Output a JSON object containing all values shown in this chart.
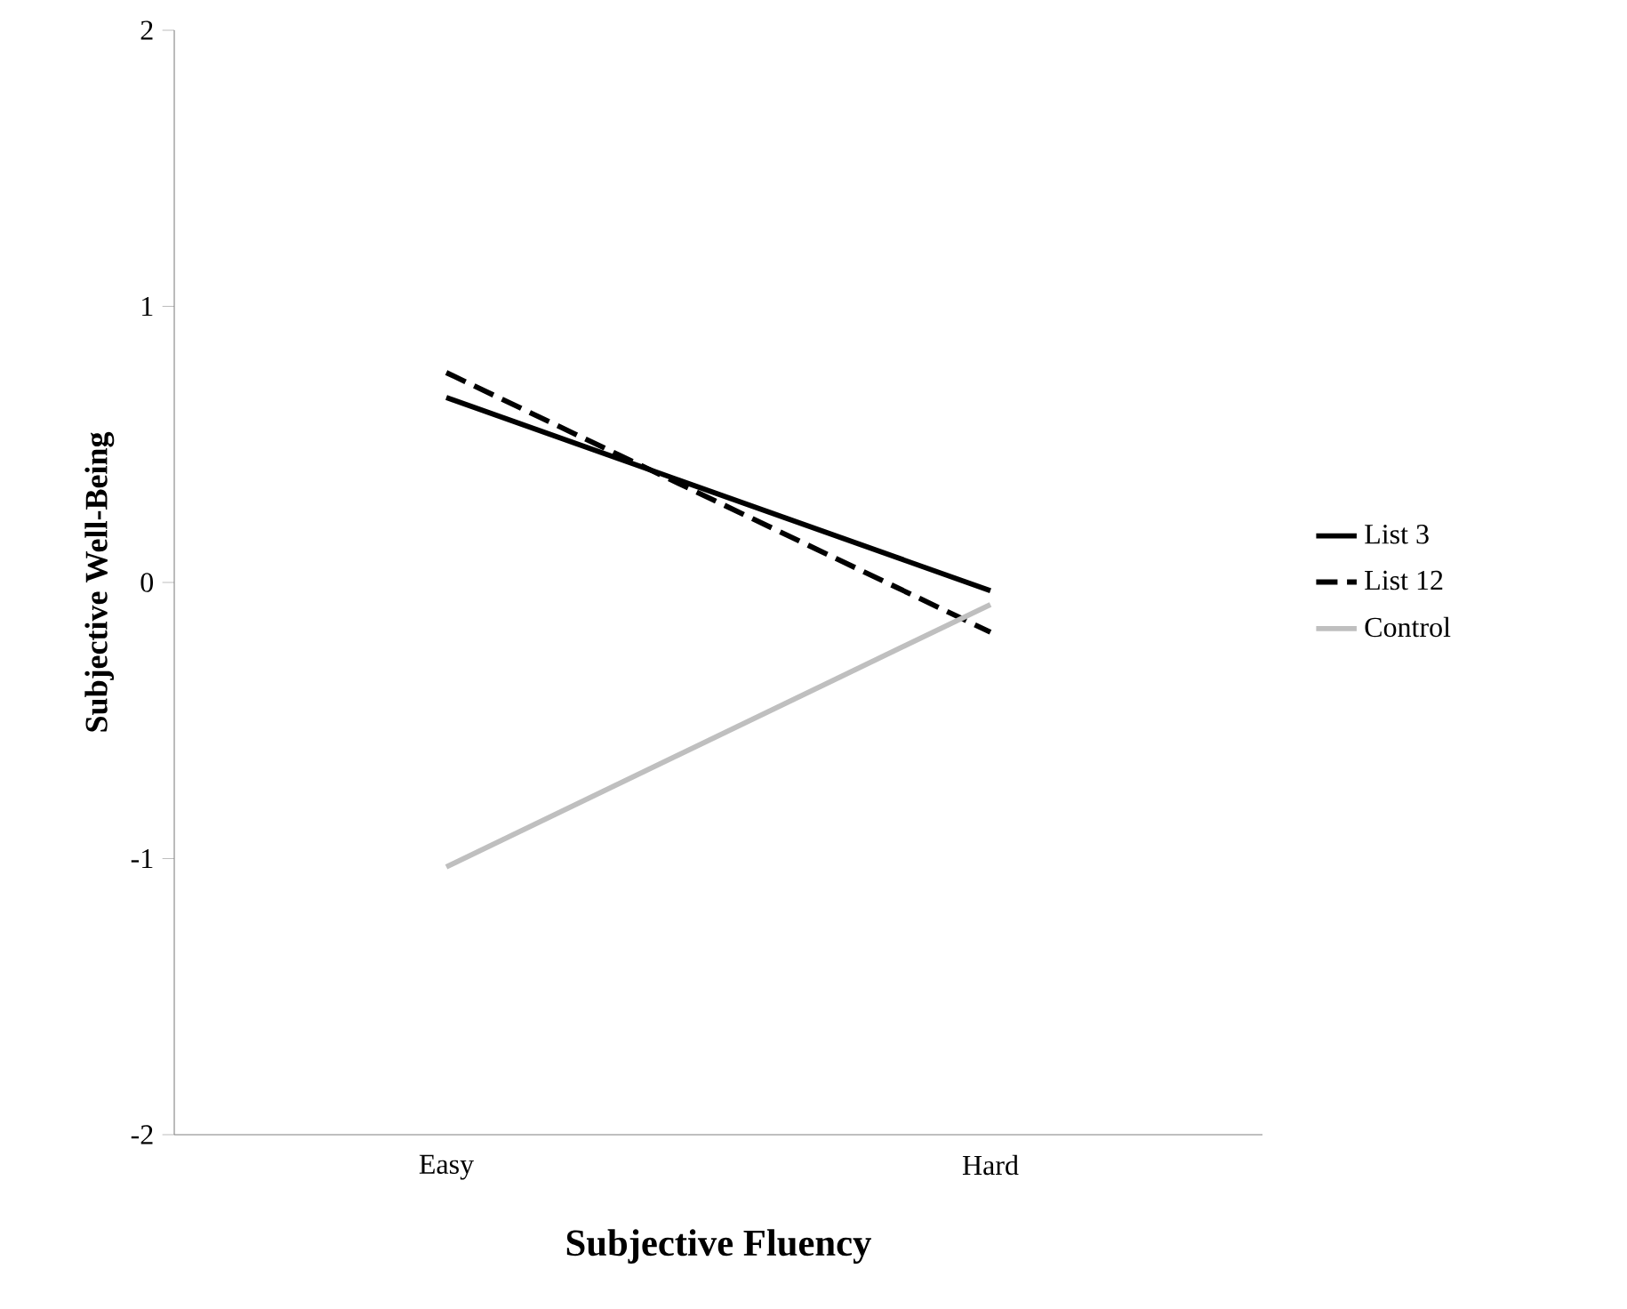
{
  "chart_data": {
    "type": "line",
    "xlabel": "Subjective Fluency",
    "ylabel": "Subjective Well-Being",
    "categories": [
      "Easy",
      "Hard"
    ],
    "series": [
      {
        "name": "List 3",
        "color": "#000000",
        "line_style": "solid",
        "values": [
          0.67,
          -0.03
        ]
      },
      {
        "name": "List 12",
        "color": "#000000",
        "line_style": "dashed",
        "values": [
          0.76,
          -0.18
        ]
      },
      {
        "name": "Control",
        "color": "#bfbfbf",
        "line_style": "solid",
        "values": [
          -1.03,
          -0.08
        ]
      }
    ],
    "ylim": [
      -2,
      2
    ],
    "yticks": [
      -2,
      -1,
      0,
      1,
      2
    ],
    "grid": false,
    "legend": "right",
    "marker": "none"
  }
}
